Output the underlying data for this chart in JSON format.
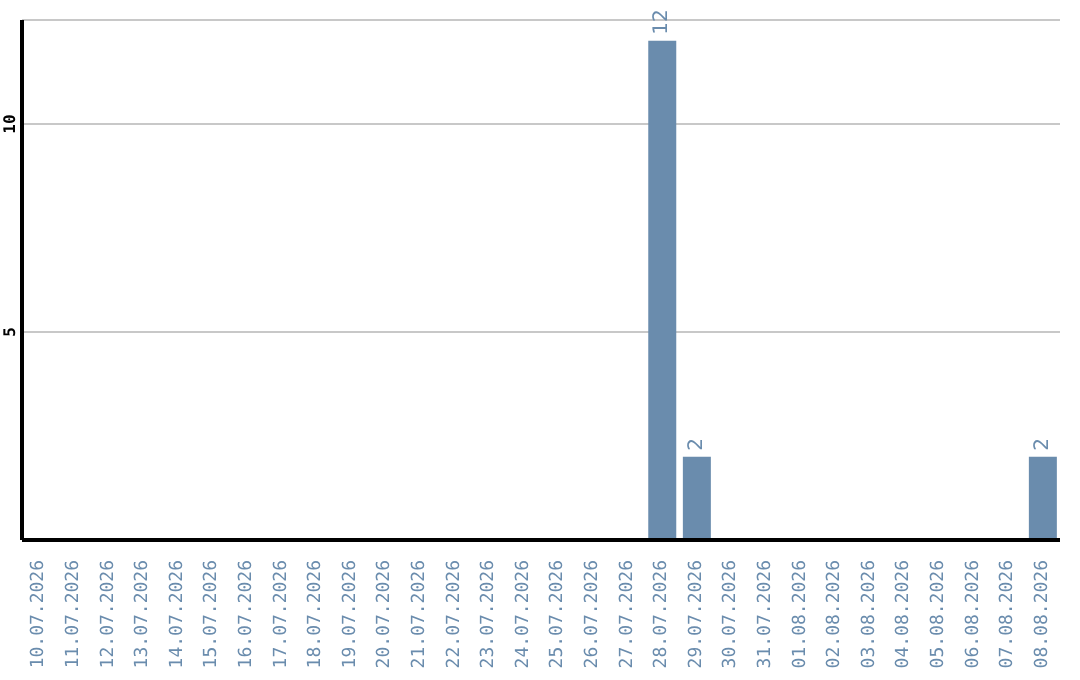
{
  "chart_data": {
    "type": "bar",
    "categories": [
      "10.07.2026",
      "11.07.2026",
      "12.07.2026",
      "13.07.2026",
      "14.07.2026",
      "15.07.2026",
      "16.07.2026",
      "17.07.2026",
      "18.07.2026",
      "19.07.2026",
      "20.07.2026",
      "21.07.2026",
      "22.07.2026",
      "23.07.2026",
      "24.07.2026",
      "25.07.2026",
      "26.07.2026",
      "27.07.2026",
      "28.07.2026",
      "29.07.2026",
      "30.07.2026",
      "31.07.2026",
      "01.08.2026",
      "02.08.2026",
      "03.08.2026",
      "04.08.2026",
      "05.08.2026",
      "06.08.2026",
      "07.08.2026",
      "08.08.2026"
    ],
    "values": [
      0,
      0,
      0,
      0,
      0,
      0,
      0,
      0,
      0,
      0,
      0,
      0,
      0,
      0,
      0,
      0,
      0,
      0,
      12,
      2,
      0,
      0,
      0,
      0,
      0,
      0,
      0,
      0,
      0,
      2
    ],
    "value_labels": [
      null,
      null,
      null,
      null,
      null,
      null,
      null,
      null,
      null,
      null,
      null,
      null,
      null,
      null,
      null,
      null,
      null,
      null,
      "12",
      "2",
      null,
      null,
      null,
      null,
      null,
      null,
      null,
      null,
      null,
      "2"
    ],
    "color": "#6a8cad",
    "ylim": [
      0,
      12.5
    ],
    "yticks": [
      5,
      10
    ],
    "grid": "y"
  }
}
